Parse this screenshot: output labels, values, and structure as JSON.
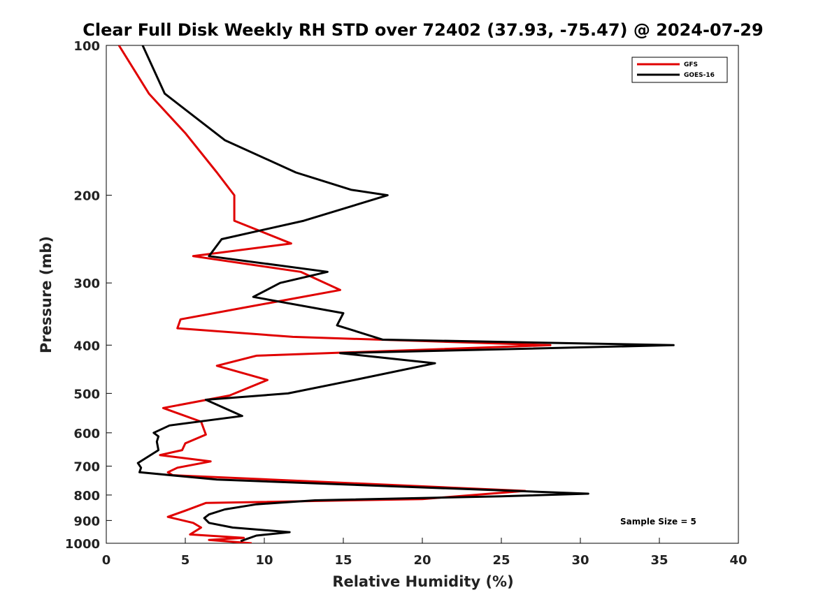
{
  "chart_data": {
    "type": "line",
    "title": "Clear Full Disk Weekly RH STD over 72402 (37.93, -75.47) @ 2024-07-29",
    "xlabel": "Relative Humidity (%)",
    "ylabel": "Pressure (mb)",
    "xlim": [
      0,
      40
    ],
    "ylim": [
      100,
      1000
    ],
    "yscale": "log",
    "y_reversed": true,
    "xticks": [
      0,
      5,
      10,
      15,
      20,
      25,
      30,
      35,
      40
    ],
    "xtick_labels": [
      "0",
      "5",
      "10",
      "15",
      "20",
      "25",
      "30",
      "35",
      "40"
    ],
    "yticks": [
      100,
      200,
      300,
      400,
      500,
      600,
      700,
      800,
      900,
      1000
    ],
    "ytick_labels": [
      "100",
      "200",
      "300",
      "400",
      "500",
      "600",
      "700",
      "800",
      "900",
      "1000"
    ],
    "legend_position": "top-right",
    "annotation": "Sample Size = 5",
    "series": [
      {
        "name": "GFS",
        "color": "#e00000",
        "x": [
          0.8,
          2.7,
          5.0,
          7.0,
          8.1,
          8.1,
          11.7,
          5.5,
          12.3,
          14.8,
          9.0,
          4.7,
          4.5,
          11.8,
          28.1,
          9.5,
          7.0,
          10.2,
          7.8,
          3.6,
          6.0,
          6.3,
          5.0,
          4.8,
          3.4,
          6.6,
          4.5,
          3.9,
          4.2,
          26.5,
          20.0,
          6.3,
          5.0,
          3.9,
          5.5,
          6.0,
          5.3,
          8.7,
          6.5,
          9.2
        ],
        "y": [
          100,
          125,
          150,
          180,
          200,
          225,
          250,
          265,
          285,
          310,
          335,
          355,
          370,
          385,
          400,
          420,
          440,
          470,
          505,
          535,
          570,
          605,
          630,
          650,
          665,
          685,
          705,
          720,
          730,
          785,
          815,
          830,
          860,
          885,
          910,
          930,
          960,
          975,
          985,
          1000
        ]
      },
      {
        "name": "GOES-16",
        "color": "#000000",
        "x": [
          2.3,
          3.7,
          7.5,
          12.0,
          15.5,
          17.8,
          12.5,
          7.3,
          6.5,
          14.0,
          11.0,
          9.3,
          15.0,
          14.6,
          17.5,
          35.9,
          14.8,
          20.8,
          15.7,
          11.5,
          6.3,
          8.6,
          4.0,
          3.0,
          3.3,
          3.2,
          3.3,
          2.0,
          2.2,
          2.1,
          7.0,
          30.5,
          25.0,
          13.2,
          9.5,
          7.5,
          6.5,
          6.2,
          6.5,
          8.0,
          11.6,
          9.5,
          8.5
        ],
        "y": [
          100,
          125,
          155,
          180,
          195,
          200,
          225,
          245,
          265,
          285,
          300,
          320,
          345,
          365,
          390,
          400,
          415,
          435,
          470,
          500,
          515,
          555,
          580,
          600,
          610,
          625,
          650,
          690,
          705,
          720,
          745,
          795,
          805,
          820,
          835,
          855,
          875,
          890,
          910,
          930,
          950,
          965,
          990
        ]
      }
    ]
  }
}
